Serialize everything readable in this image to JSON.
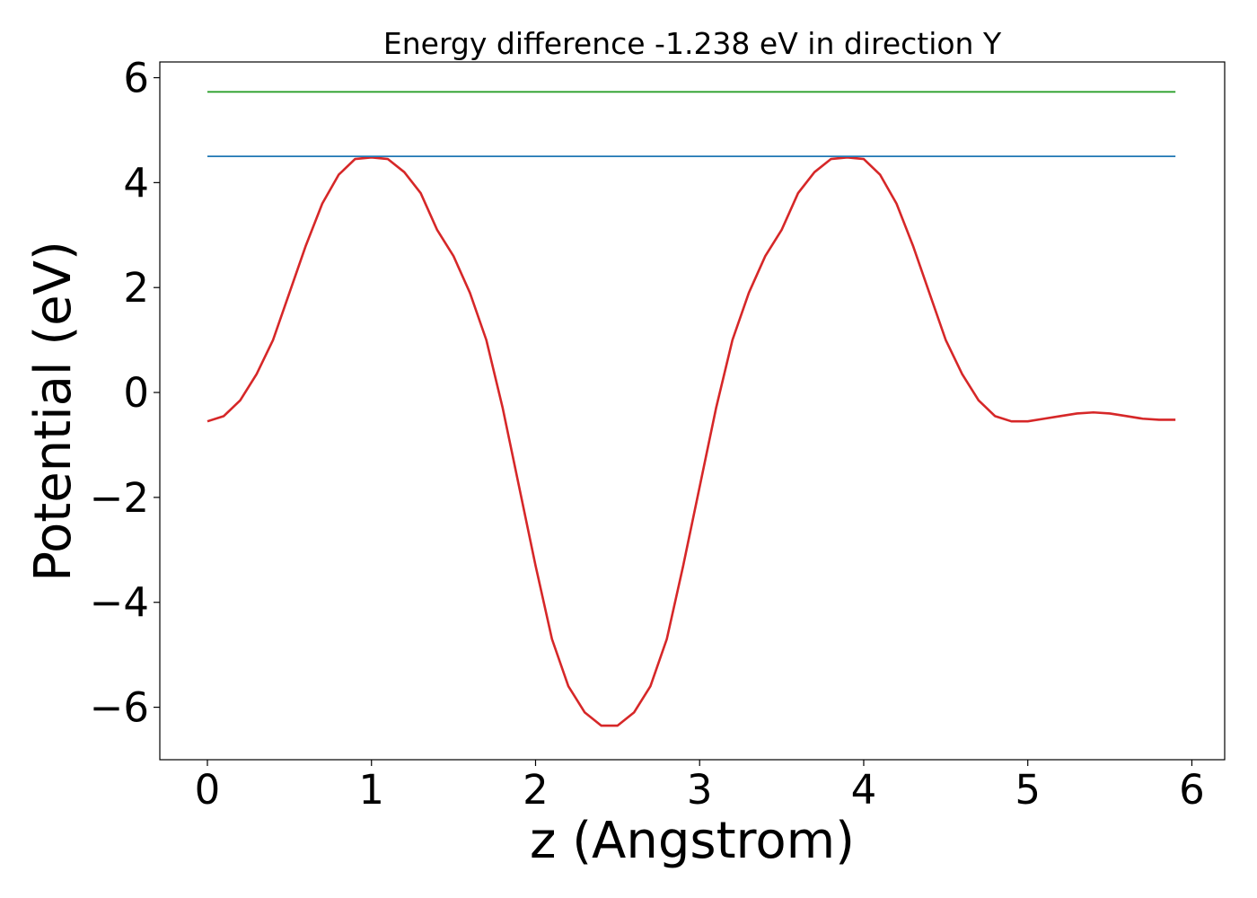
{
  "chart_data": {
    "type": "line",
    "title": "Energy difference -1.238 eV in direction Y",
    "xlabel": "z (Angstrom)",
    "ylabel": "Potential (eV)",
    "xlim": [
      -0.29,
      6.2
    ],
    "ylim": [
      -7.0,
      6.3
    ],
    "xticks": [
      0,
      1,
      2,
      3,
      4,
      5,
      6
    ],
    "xtick_labels": [
      "0",
      "1",
      "2",
      "3",
      "4",
      "5",
      "6"
    ],
    "yticks": [
      6,
      4,
      2,
      0,
      -2,
      -4,
      -6
    ],
    "ytick_labels": [
      "6",
      "4",
      "2",
      "0",
      "−2",
      "−4",
      "−6"
    ],
    "grid": false,
    "legend": "none",
    "series": [
      {
        "color": "#d62728",
        "x": [
          0,
          0.1,
          0.2,
          0.3,
          0.4,
          0.5,
          0.6,
          0.7,
          0.8,
          0.9,
          1.0,
          1.1,
          1.2,
          1.3,
          1.4,
          1.5,
          1.6,
          1.7,
          1.8,
          1.9,
          2.0,
          2.1,
          2.2,
          2.3,
          2.4,
          2.5,
          2.6,
          2.7,
          2.8,
          2.9,
          3.0,
          3.1,
          3.2,
          3.3,
          3.4,
          3.5,
          3.6,
          3.7,
          3.8,
          3.9,
          4.0,
          4.1,
          4.2,
          4.3,
          4.4,
          4.5,
          4.6,
          4.7,
          4.8,
          4.9,
          5.0,
          5.1,
          5.2,
          5.3,
          5.4,
          5.5,
          5.6,
          5.7,
          5.8,
          5.9
        ],
        "y": [
          -0.55,
          -0.45,
          -0.15,
          0.35,
          1.0,
          1.9,
          2.8,
          3.6,
          4.15,
          4.45,
          4.48,
          4.45,
          4.2,
          3.8,
          3.1,
          2.6,
          1.9,
          1.0,
          -0.3,
          -1.8,
          -3.3,
          -4.7,
          -5.6,
          -6.1,
          -6.35,
          -6.35,
          -6.1,
          -5.6,
          -4.7,
          -3.3,
          -1.8,
          -0.3,
          1.0,
          1.9,
          2.6,
          3.1,
          3.8,
          4.2,
          4.45,
          4.48,
          4.45,
          4.15,
          3.6,
          2.8,
          1.9,
          1.0,
          0.35,
          -0.15,
          -0.45,
          -0.55,
          -0.55,
          -0.5,
          -0.45,
          -0.4,
          -0.38,
          -0.4,
          -0.45,
          -0.5,
          -0.52,
          -0.52
        ]
      },
      {
        "color": "#1f77b4",
        "x": [
          0,
          5.9
        ],
        "y": [
          4.5,
          4.5
        ]
      },
      {
        "color": "#2ca02c",
        "x": [
          0,
          5.9
        ],
        "y": [
          5.73,
          5.73
        ]
      }
    ]
  }
}
